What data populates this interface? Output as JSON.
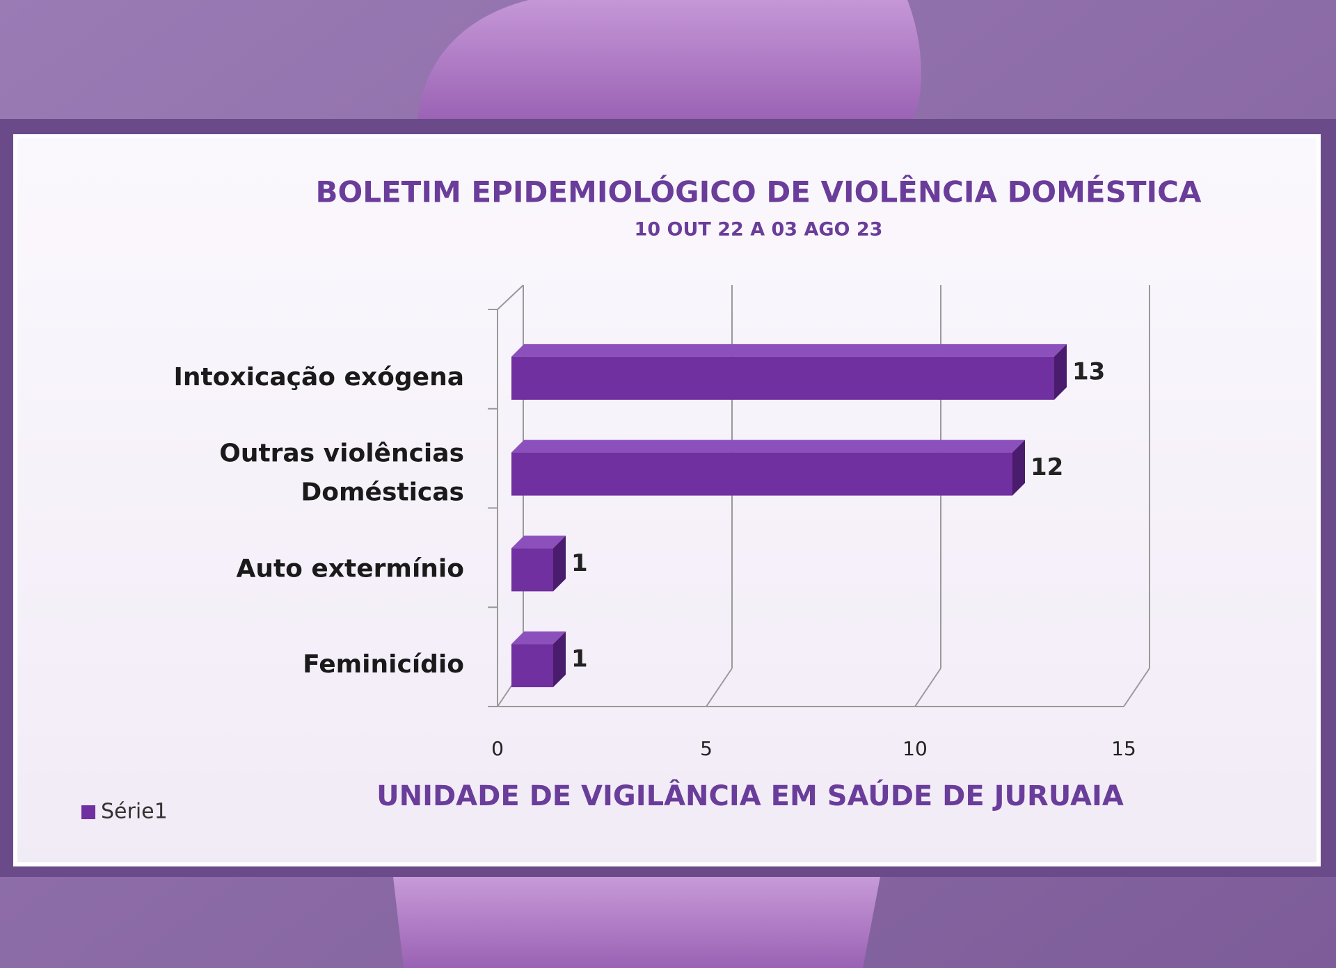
{
  "chart_data": {
    "type": "bar",
    "orientation": "horizontal",
    "title": "BOLETIM EPIDEMIOLÓGICO DE VIOLÊNCIA DOMÉSTICA",
    "subtitle": "10 OUT 22 A 03 AGO 23",
    "caption": "UNIDADE DE VIGILÂNCIA EM SAÚDE DE JURUAIA",
    "categories": [
      "Intoxicação exógena",
      "Outras violências Domésticas",
      "Auto extermínio",
      "Feminicídio"
    ],
    "series": [
      {
        "name": "Série1",
        "color": "#7030a0",
        "values": [
          13,
          12,
          1,
          1
        ]
      }
    ],
    "xlim": [
      0,
      15
    ],
    "xticks": [
      0,
      5,
      10,
      15
    ],
    "grid": true,
    "legend": "bottom-left"
  }
}
